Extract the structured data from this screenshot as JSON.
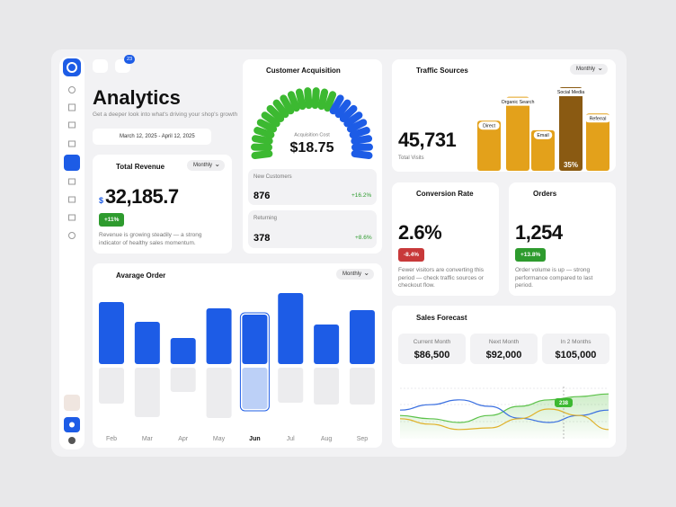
{
  "header": {
    "title": "Analytics",
    "subtitle": "Get a deeper look into what's driving your shop's growth",
    "date_range": "March 12, 2025 - April 12, 2025",
    "badge": "23"
  },
  "total_revenue": {
    "title": "Total Revenue",
    "period": "Monthly",
    "currency": "$",
    "value": "32,185.7",
    "change": "+11%",
    "note": "Revenue is growing steadily — a strong indicator of healthy sales momentum."
  },
  "customer_acquisition": {
    "title": "Customer Acquisition",
    "cost_label": "Acquisition Cost",
    "cost": "$18.75",
    "rows": [
      {
        "label": "New Customers",
        "value": "876",
        "change": "+16.2%"
      },
      {
        "label": "Returning",
        "value": "378",
        "change": "+8.6%"
      }
    ]
  },
  "traffic_sources": {
    "title": "Traffic Sources",
    "period": "Monthly",
    "total": "45,731",
    "total_label": "Total Visits",
    "chart": {
      "type": "bar",
      "categories": [
        "Direct",
        "Organic Search",
        "Email",
        "Social Media",
        "Referral"
      ],
      "values": [
        21,
        31,
        17,
        35,
        24
      ],
      "value_labels": [
        null,
        null,
        null,
        "35%",
        null
      ],
      "colors": [
        "#e3a11b",
        "#e3a11b",
        "#e3a11b",
        "#8a5a12",
        "#e3a11b"
      ]
    }
  },
  "conversion_rate": {
    "title": "Conversion Rate",
    "value": "2.6%",
    "change": "-8.4%",
    "note": "Fewer visitors are converting this period — check traffic sources or checkout flow."
  },
  "orders": {
    "title": "Orders",
    "value": "1,254",
    "change": "+13.8%",
    "note": "Order volume is up — strong performance compared to last period."
  },
  "average_order": {
    "title": "Avarage Order",
    "period": "Monthly",
    "chart": {
      "type": "bar",
      "categories": [
        "Feb",
        "Mar",
        "Apr",
        "May",
        "Jun",
        "Jul",
        "Aug",
        "Sep"
      ],
      "series": [
        {
          "color": "#1d5ce6",
          "values": [
            69,
            47,
            29,
            62,
            55,
            79,
            44,
            60
          ]
        },
        {
          "color": "#ececee",
          "values": [
            40,
            55,
            27,
            56,
            46,
            39,
            41,
            41
          ],
          "colors": [
            "#ececee",
            "#ececee",
            "#ececee",
            "#ececee",
            "#bcd0f7",
            "#ececee",
            "#ececee",
            "#ececee"
          ]
        }
      ]
    }
  },
  "sales_forecast": {
    "title": "Sales Forecast",
    "boxes": [
      {
        "label": "Current Month",
        "value": "$86,500"
      },
      {
        "label": "Next Month",
        "value": "$92,000"
      },
      {
        "label": "In 2 Months",
        "value": "$105,000"
      }
    ],
    "chart": {
      "type": "line",
      "marker": "238",
      "series": [
        {
          "color": "#5cc24a",
          "values": [
            43,
            37,
            30,
            43,
            60,
            72,
            78,
            83
          ]
        },
        {
          "color": "#3a6fe0",
          "values": [
            53,
            63,
            72,
            60,
            38,
            30,
            43,
            53
          ]
        },
        {
          "color": "#e0b12a",
          "values": [
            37,
            27,
            17,
            20,
            37,
            55,
            43,
            17
          ]
        }
      ]
    }
  }
}
